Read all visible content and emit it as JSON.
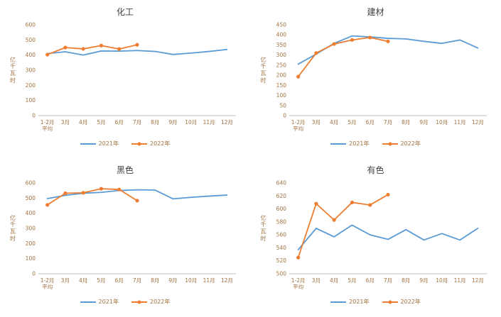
{
  "page": {
    "background": "#ffffff"
  },
  "colors": {
    "series_2021": "#5B9BD5",
    "series_2022": "#ED7D31",
    "axis_text": "#A0713F",
    "title_text": "#404040",
    "axis_line": "#BFBFBF"
  },
  "chart_data": [
    {
      "type": "line",
      "title": "化工",
      "ylabel": "亿千瓦时",
      "ylim": [
        0,
        600
      ],
      "ytick_step": 100,
      "grid": false,
      "legend_position": "bottom",
      "categories": [
        "1-2月平均",
        "3月",
        "4月",
        "5月",
        "6月",
        "7月",
        "8月",
        "9月",
        "10月",
        "11月",
        "12月"
      ],
      "series": [
        {
          "name": "2021年",
          "color": "#5B9BD5",
          "marker": false,
          "values": [
            410,
            422,
            400,
            427,
            426,
            430,
            424,
            404,
            413,
            424,
            437
          ]
        },
        {
          "name": "2022年",
          "color": "#ED7D31",
          "marker": true,
          "values": [
            403,
            450,
            441,
            463,
            440,
            468
          ]
        }
      ]
    },
    {
      "type": "line",
      "title": "建材",
      "ylabel": "亿千瓦时",
      "ylim": [
        0,
        450
      ],
      "ytick_step": 50,
      "grid": false,
      "legend_position": "bottom",
      "categories": [
        "1-2月平均",
        "3月",
        "4月",
        "5月",
        "6月",
        "7月",
        "8月",
        "9月",
        "10月",
        "11月",
        "12月"
      ],
      "series": [
        {
          "name": "2021年",
          "color": "#5B9BD5",
          "marker": false,
          "values": [
            255,
            305,
            358,
            395,
            390,
            383,
            380,
            368,
            358,
            375,
            335
          ]
        },
        {
          "name": "2022年",
          "color": "#ED7D31",
          "marker": true,
          "values": [
            193,
            310,
            355,
            375,
            387,
            368
          ]
        }
      ]
    },
    {
      "type": "line",
      "title": "黑色",
      "ylabel": "亿千瓦时",
      "ylim": [
        0,
        600
      ],
      "ytick_step": 100,
      "grid": false,
      "legend_position": "bottom",
      "categories": [
        "1-2月平均",
        "3月",
        "4月",
        "5月",
        "6月",
        "7月",
        "8月",
        "9月",
        "10月",
        "11月",
        "12月"
      ],
      "series": [
        {
          "name": "2021年",
          "color": "#5B9BD5",
          "marker": false,
          "values": [
            497,
            518,
            532,
            538,
            550,
            555,
            553,
            495,
            505,
            513,
            520
          ]
        },
        {
          "name": "2022年",
          "color": "#ED7D31",
          "marker": true,
          "values": [
            455,
            532,
            535,
            562,
            557,
            483
          ]
        }
      ]
    },
    {
      "type": "line",
      "title": "有色",
      "ylabel": "亿千瓦时",
      "ylim": [
        500,
        640
      ],
      "ytick_step": 20,
      "grid": false,
      "legend_position": "bottom",
      "categories": [
        "1-2月平均",
        "3月",
        "4月",
        "5月",
        "6月",
        "7月",
        "8月",
        "9月",
        "10月",
        "11月",
        "12月"
      ],
      "series": [
        {
          "name": "2021年",
          "color": "#5B9BD5",
          "marker": false,
          "values": [
            537,
            570,
            557,
            575,
            560,
            553,
            568,
            552,
            562,
            552,
            570
          ]
        },
        {
          "name": "2022年",
          "color": "#ED7D31",
          "marker": true,
          "values": [
            525,
            608,
            583,
            610,
            606,
            622
          ]
        }
      ]
    }
  ]
}
